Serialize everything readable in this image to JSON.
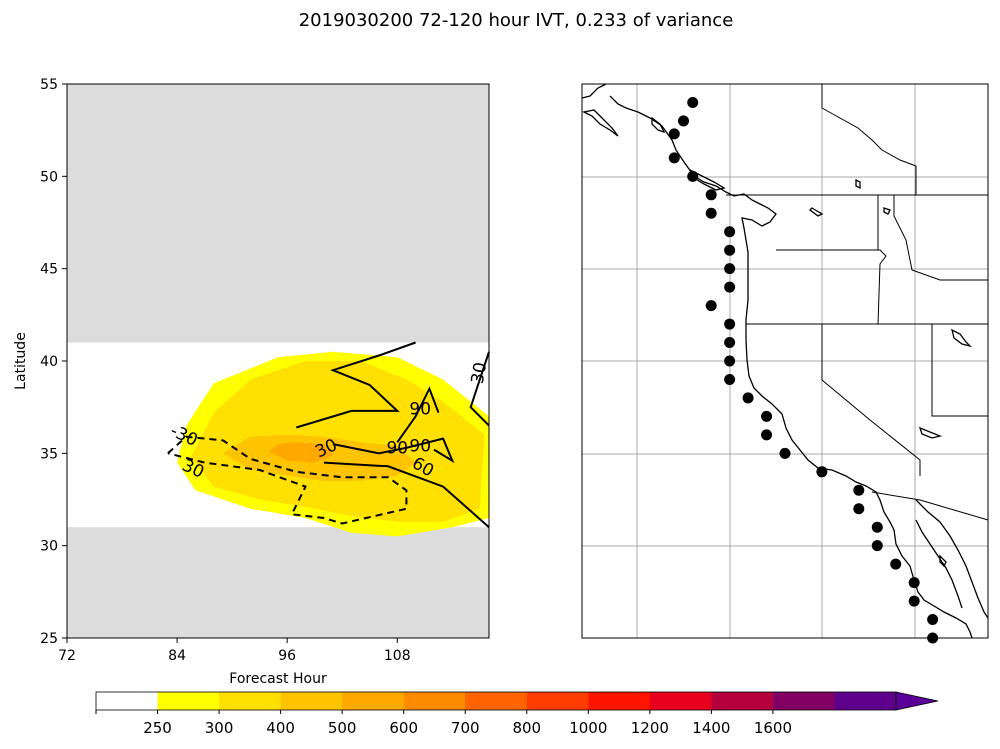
{
  "title": "2019030200 72-120 hour IVT, 0.233 of variance",
  "chart_data": [
    {
      "type": "heatmap",
      "xlabel": "Forecast Hour",
      "ylabel": "Latitude",
      "xlim": [
        72,
        118
      ],
      "ylim": [
        25,
        55
      ],
      "x_ticks": [
        "72",
        "84",
        "96",
        "108"
      ],
      "y_ticks": [
        "25",
        "30",
        "35",
        "40",
        "45",
        "50",
        "55"
      ],
      "masked_regions": [
        {
          "lat_min": 41,
          "lat_max": 55,
          "color": "#dcdcdc"
        },
        {
          "lat_min": 25,
          "lat_max": 31,
          "color": "#dcdcdc"
        }
      ],
      "filled_contours": [
        {
          "level": 250,
          "color": "#ffff00",
          "points": [
            [
              84,
              34.5
            ],
            [
              86,
              33
            ],
            [
              92,
              32
            ],
            [
              98,
              31.5
            ],
            [
              103,
              30.7
            ],
            [
              108,
              30.5
            ],
            [
              114,
              31
            ],
            [
              118,
              31.5
            ],
            [
              118,
              37
            ],
            [
              113,
              39
            ],
            [
              108,
              40.2
            ],
            [
              101,
              40.5
            ],
            [
              95,
              40.2
            ],
            [
              88,
              38.8
            ],
            [
              85,
              36.5
            ]
          ]
        },
        {
          "level": 300,
          "color": "#ffe000",
          "points": [
            [
              85.5,
              34.8
            ],
            [
              88,
              33.2
            ],
            [
              93,
              32.5
            ],
            [
              98,
              32.1
            ],
            [
              103,
              31.6
            ],
            [
              108,
              31.3
            ],
            [
              113,
              31.3
            ],
            [
              117,
              32
            ],
            [
              117.5,
              36
            ],
            [
              113,
              37.8
            ],
            [
              109,
              39
            ],
            [
              104,
              40
            ],
            [
              98,
              40
            ],
            [
              92,
              39
            ],
            [
              88,
              37.2
            ]
          ]
        },
        {
          "level": 400,
          "color": "#ffc400",
          "points": [
            [
              89,
              35
            ],
            [
              92,
              34.1
            ],
            [
              96,
              33.8
            ],
            [
              100,
              33.5
            ],
            [
              104,
              33.5
            ],
            [
              108,
              33.8
            ],
            [
              110,
              34.5
            ],
            [
              108,
              35.4
            ],
            [
              104,
              35.6
            ],
            [
              100,
              35.9
            ],
            [
              96,
              36
            ],
            [
              92,
              35.9
            ]
          ]
        },
        {
          "level": 500,
          "color": "#ffa800",
          "points": [
            [
              94,
              35.1
            ],
            [
              96,
              34.6
            ],
            [
              99,
              34.5
            ],
            [
              101,
              34.9
            ],
            [
              100,
              35.5
            ],
            [
              97,
              35.6
            ],
            [
              95,
              35.5
            ]
          ]
        }
      ],
      "contour_lines": [
        {
          "label": "30",
          "style": "dashed",
          "points": [
            [
              83,
              35
            ],
            [
              85,
              35.9
            ],
            [
              89,
              35.7
            ],
            [
              92,
              34.7
            ],
            [
              97,
              34
            ],
            [
              102,
              33.7
            ],
            [
              107,
              33.7
            ],
            [
              109,
              33
            ],
            [
              109,
              32
            ],
            [
              102,
              31.2
            ],
            [
              100,
              31.5
            ],
            [
              96.5,
              31.7
            ],
            [
              98,
              33.2
            ],
            [
              93,
              34.1
            ],
            [
              87,
              34.5
            ],
            [
              83,
              35
            ]
          ]
        },
        {
          "label": "30",
          "style": "solid",
          "points": [
            [
              118,
              40.5
            ],
            [
              117,
              39
            ],
            [
              116,
              37.5
            ],
            [
              118,
              36.5
            ]
          ]
        },
        {
          "label": "60",
          "style": "solid",
          "points": [
            [
              100,
              34.5
            ],
            [
              107,
              34.3
            ],
            [
              113,
              33.2
            ],
            [
              118,
              31
            ]
          ]
        },
        {
          "label": "90",
          "style": "solid",
          "points": [
            [
              97,
              36.4
            ],
            [
              103,
              37.3
            ],
            [
              108,
              37.3
            ],
            [
              105,
              38.7
            ],
            [
              101,
              39.5
            ],
            [
              106,
              40.3
            ],
            [
              110,
              41
            ]
          ]
        },
        {
          "label": "90",
          "style": "solid",
          "points": [
            [
              101,
              35.5
            ],
            [
              106,
              35
            ],
            [
              109,
              35.3
            ],
            [
              113,
              35.8
            ],
            [
              114,
              34.6
            ],
            [
              112,
              35.2
            ]
          ]
        },
        {
          "label": "90",
          "style": "solid",
          "points": [
            [
              108,
              35.6
            ],
            [
              110,
              37
            ],
            [
              111.5,
              38.5
            ],
            [
              112.5,
              37.2
            ]
          ]
        }
      ],
      "contour_labels": [
        "30",
        "30",
        "30",
        "60",
        "90",
        "90",
        "90",
        "-30"
      ]
    },
    {
      "type": "scatter",
      "description_map": "West coast of North America with state borders",
      "points": [
        [
          -124.0,
          54.0
        ],
        [
          -124.5,
          53.0
        ],
        [
          -125.0,
          52.3
        ],
        [
          -125.0,
          51.0
        ],
        [
          -124.0,
          50.0
        ],
        [
          -123.0,
          49.0
        ],
        [
          -123.0,
          48.0
        ],
        [
          -122.0,
          47.0
        ],
        [
          -122.0,
          46.0
        ],
        [
          -122.0,
          45.0
        ],
        [
          -122.0,
          44.0
        ],
        [
          -123.0,
          43.0
        ],
        [
          -122.0,
          42.0
        ],
        [
          -122.0,
          41.0
        ],
        [
          -122.0,
          40.0
        ],
        [
          -122.0,
          39.0
        ],
        [
          -121.0,
          38.0
        ],
        [
          -120.0,
          37.0
        ],
        [
          -120.0,
          36.0
        ],
        [
          -119.0,
          35.0
        ],
        [
          -117.0,
          34.0
        ],
        [
          -115.0,
          33.0
        ],
        [
          -115.0,
          32.0
        ],
        [
          -114.0,
          31.0
        ],
        [
          -114.0,
          30.0
        ],
        [
          -113.0,
          29.0
        ],
        [
          -112.0,
          28.0
        ],
        [
          -112.0,
          27.0
        ],
        [
          -111.0,
          26.0
        ],
        [
          -111.0,
          25.0
        ]
      ]
    },
    {
      "type": "colorbar",
      "boundaries": [
        "250",
        "300",
        "400",
        "500",
        "600",
        "700",
        "800",
        "1000",
        "1200",
        "1400",
        "1600"
      ],
      "colors": [
        "#ffffff",
        "#ffff00",
        "#ffe000",
        "#ffc400",
        "#ffa800",
        "#ff8c00",
        "#ff6400",
        "#ff3c00",
        "#ff1400",
        "#e8001e",
        "#b4003c",
        "#820064",
        "#5f008c",
        "#5a0098"
      ]
    }
  ]
}
